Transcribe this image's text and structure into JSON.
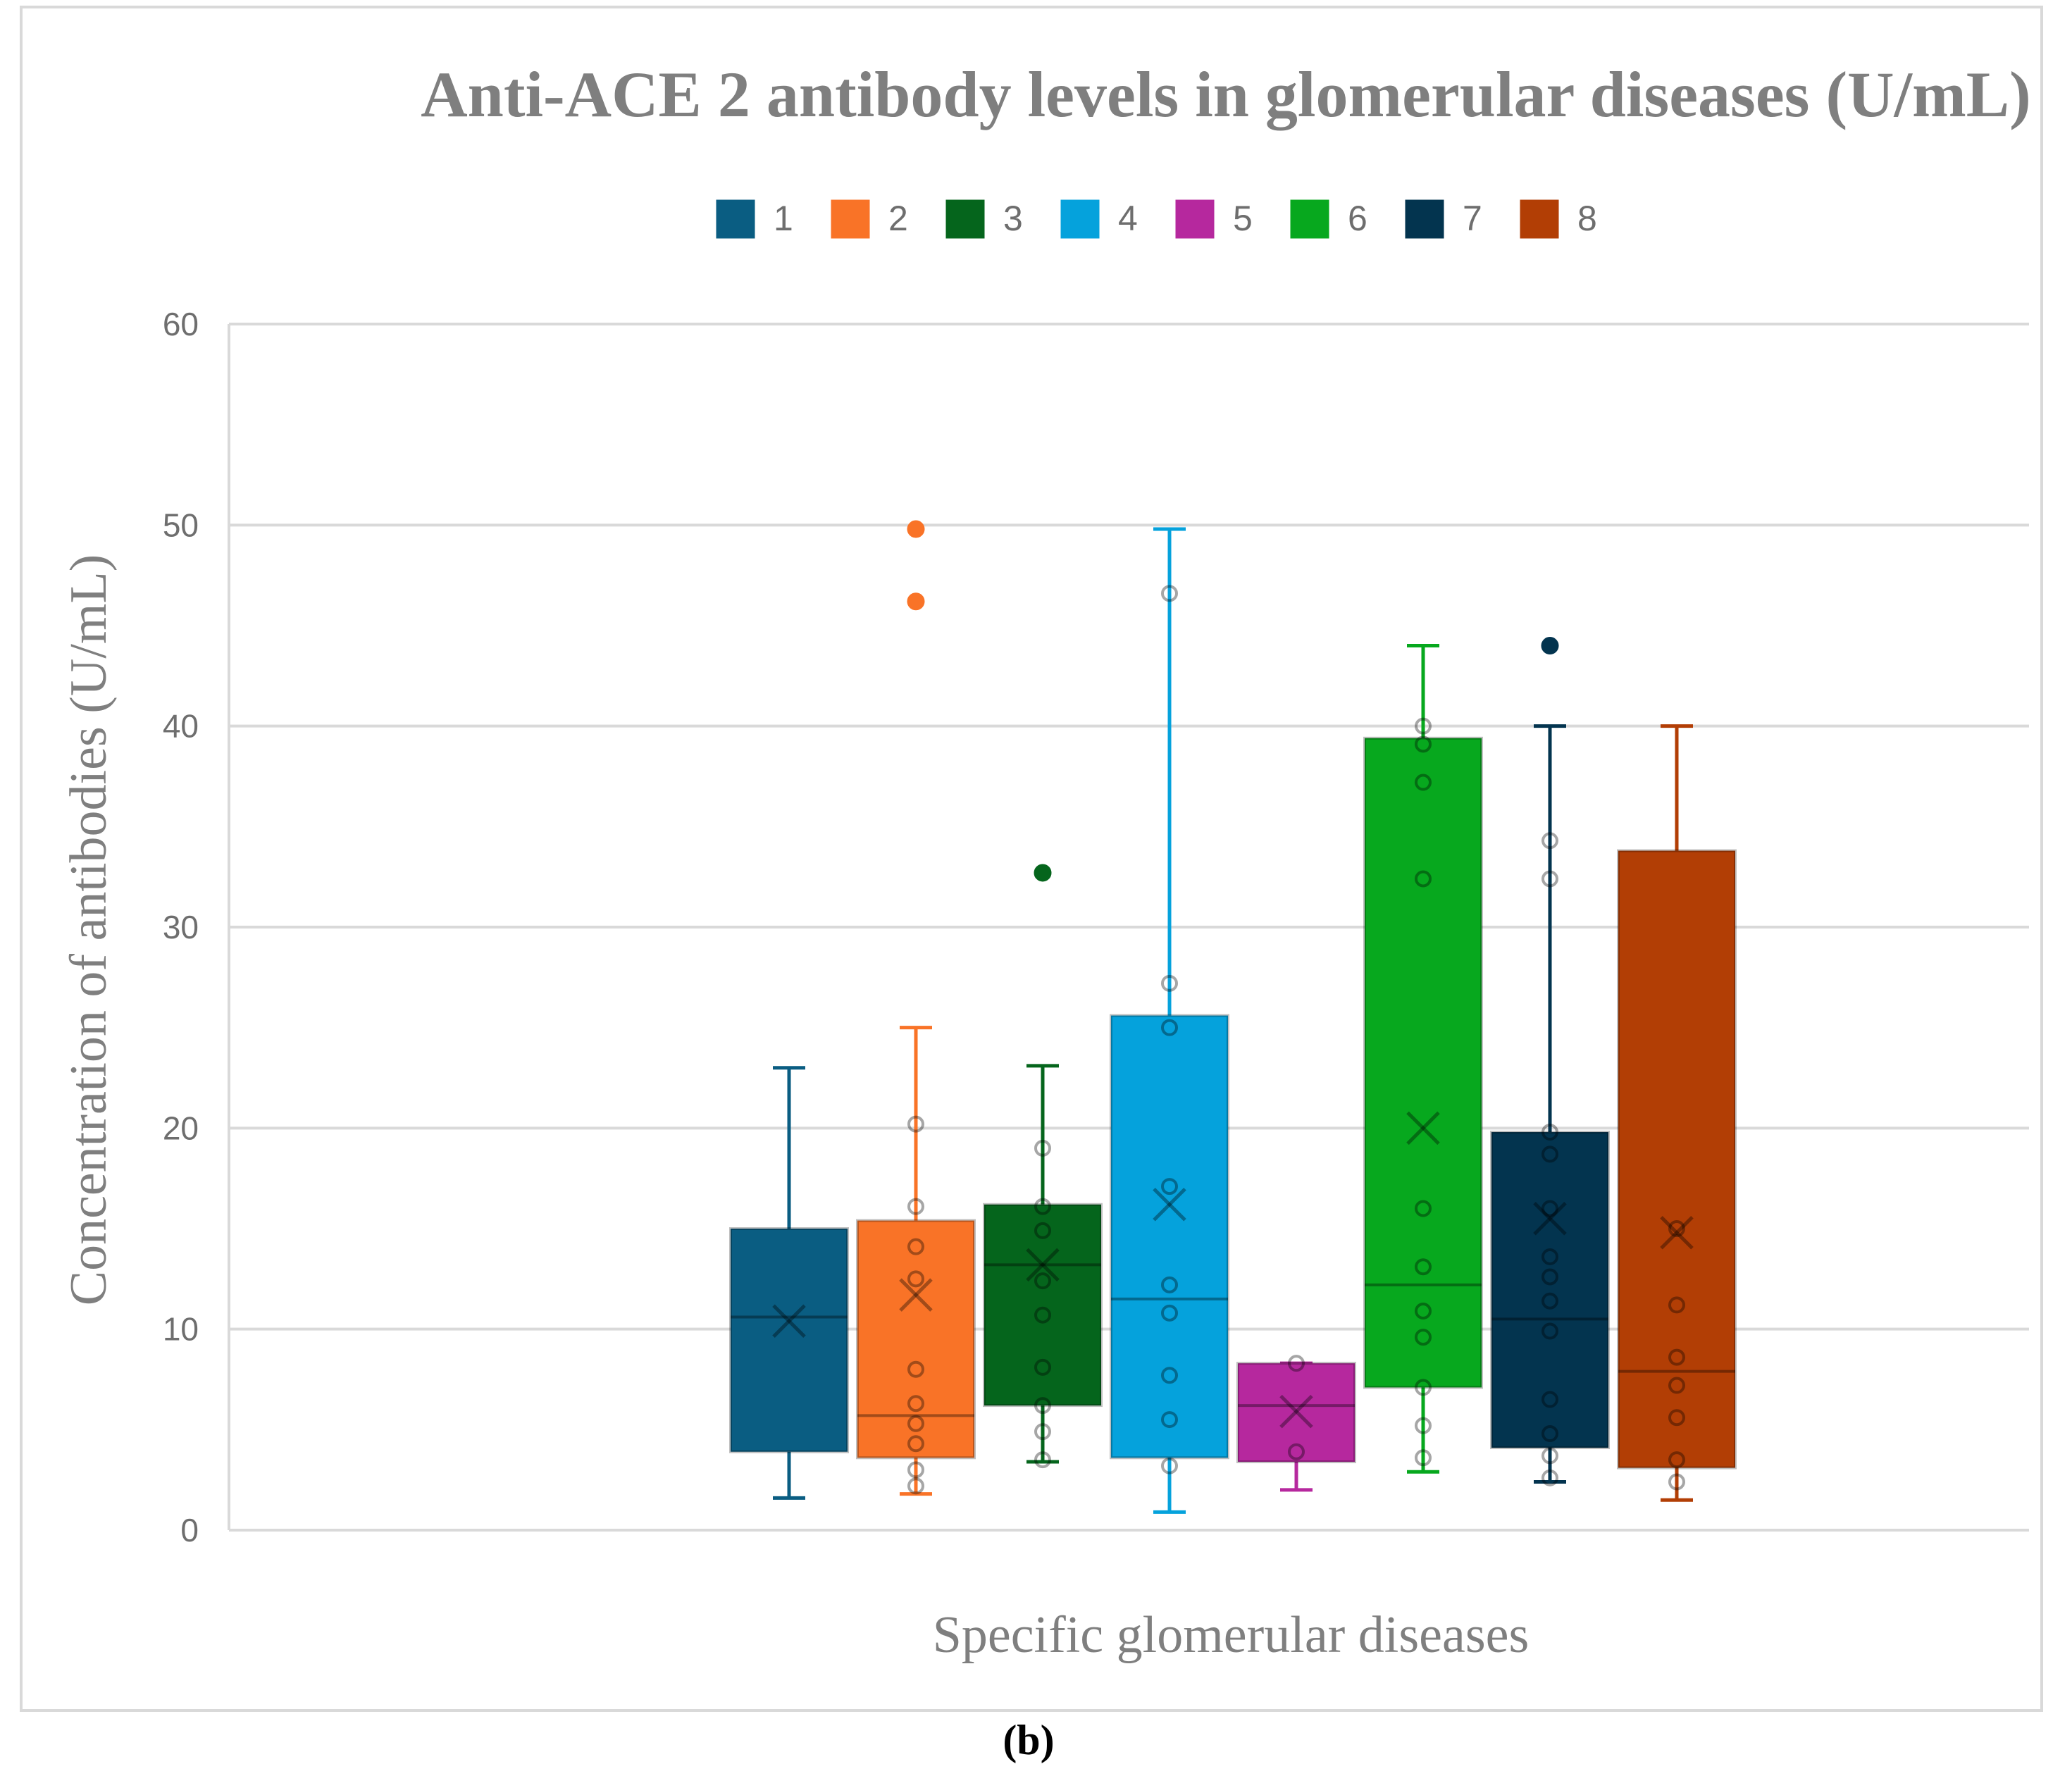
{
  "chart_data": {
    "type": "boxplot",
    "title": "Anti-ACE 2 antibody levels in  glomerular diseases (U/mL)",
    "xlabel": "Specific glomerular diseases",
    "ylabel": "Concentration of antibodies (U/mL)",
    "ylim": [
      0,
      60
    ],
    "yticks": [
      0,
      10,
      20,
      30,
      40,
      50,
      60
    ],
    "grid": true,
    "legend_position": "top",
    "caption": "(b)",
    "series": [
      {
        "name": "1",
        "color": "#0a5d82",
        "min": 1.6,
        "q1": 3.9,
        "median": 10.6,
        "q3": 15.0,
        "max": 23.0,
        "mean": 10.4,
        "points": [],
        "outliers": []
      },
      {
        "name": "2",
        "color": "#f97327",
        "min": 1.8,
        "q1": 3.6,
        "median": 5.7,
        "q3": 15.4,
        "max": 25.0,
        "mean": 11.7,
        "points": [
          2.2,
          3.0,
          4.3,
          5.3,
          6.3,
          8.0,
          12.5,
          14.1,
          16.1,
          20.2
        ],
        "outliers": [
          46.2,
          49.8
        ]
      },
      {
        "name": "3",
        "color": "#05651c",
        "min": 3.4,
        "q1": 6.2,
        "median": 13.2,
        "q3": 16.2,
        "max": 23.1,
        "mean": 13.2,
        "points": [
          3.5,
          4.9,
          6.2,
          8.1,
          10.7,
          12.4,
          14.9,
          16.1,
          19.0
        ],
        "outliers": [
          32.7
        ]
      },
      {
        "name": "4",
        "color": "#05a2dc",
        "min": 0.9,
        "q1": 3.6,
        "median": 11.5,
        "q3": 25.6,
        "max": 49.8,
        "mean": 16.2,
        "points": [
          3.2,
          5.5,
          7.7,
          10.8,
          12.2,
          17.1,
          25.0,
          27.2,
          46.6
        ],
        "outliers": []
      },
      {
        "name": "5",
        "color": "#b6289e",
        "min": 2.0,
        "q1": 3.4,
        "median": 6.2,
        "q3": 8.3,
        "max": 8.3,
        "mean": 5.9,
        "points": [
          3.9,
          8.3
        ],
        "outliers": []
      },
      {
        "name": "6",
        "color": "#07a81e",
        "min": 2.9,
        "q1": 7.1,
        "median": 12.2,
        "q3": 39.4,
        "max": 44.0,
        "mean": 20.0,
        "points": [
          3.6,
          5.2,
          7.1,
          9.6,
          10.9,
          13.1,
          16.0,
          32.4,
          37.2,
          39.1,
          40.0
        ],
        "outliers": []
      },
      {
        "name": "7",
        "color": "#03344f",
        "min": 2.4,
        "q1": 4.1,
        "median": 10.5,
        "q3": 19.8,
        "max": 40.0,
        "mean": 15.5,
        "points": [
          2.6,
          3.7,
          4.8,
          6.5,
          9.9,
          11.4,
          12.6,
          13.6,
          16.0,
          18.7,
          19.8,
          32.4,
          34.3
        ],
        "outliers": [
          44.0
        ]
      },
      {
        "name": "8",
        "color": "#b23e05",
        "min": 1.5,
        "q1": 3.1,
        "median": 7.9,
        "q3": 33.8,
        "max": 40.0,
        "mean": 14.8,
        "points": [
          2.4,
          3.5,
          5.6,
          7.2,
          8.6,
          11.2,
          15.0
        ],
        "outliers": []
      }
    ]
  }
}
